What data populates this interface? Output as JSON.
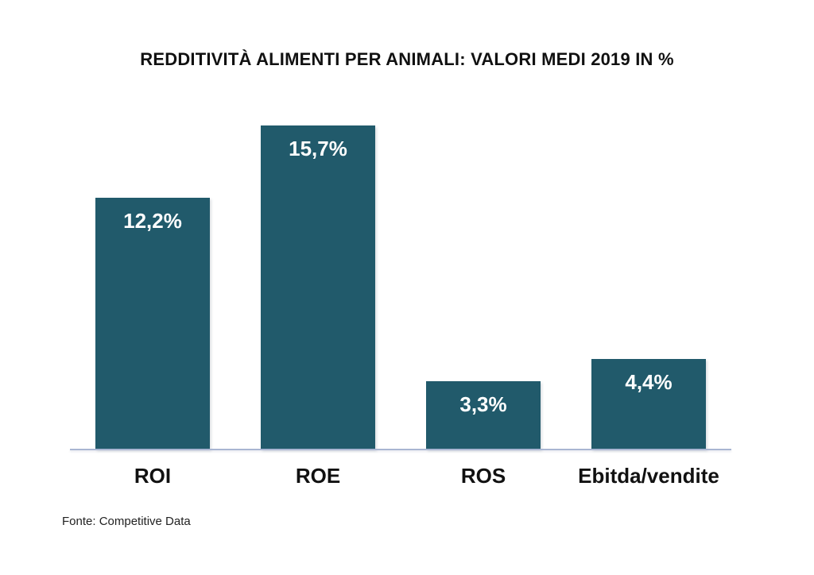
{
  "source": {
    "text": "Fonte: Competitive Data"
  },
  "colors": {
    "bar": "#215A6B",
    "axis_line": "#A9B6D2",
    "title_text": "#111111",
    "value_label": "#FFFFFF",
    "background": "#FFFFFF"
  },
  "chart_data": {
    "type": "bar",
    "title": "REDDITIVITÀ ALIMENTI PER ANIMALI: VALORI MEDI 2019 IN %",
    "categories": [
      "ROI",
      "ROE",
      "ROS",
      "Ebitda/vendite"
    ],
    "values": [
      12.2,
      15.7,
      3.3,
      4.4
    ],
    "value_labels": [
      "12,2%",
      "15,7%",
      "3,3%",
      "4,4%"
    ],
    "xlabel": "",
    "ylabel": "",
    "ylim": [
      0,
      16.4
    ],
    "grid": false,
    "legend": false,
    "data_label_position": "inside-top",
    "bar_color": "#215A6B",
    "baseline_axis_visible": true
  }
}
